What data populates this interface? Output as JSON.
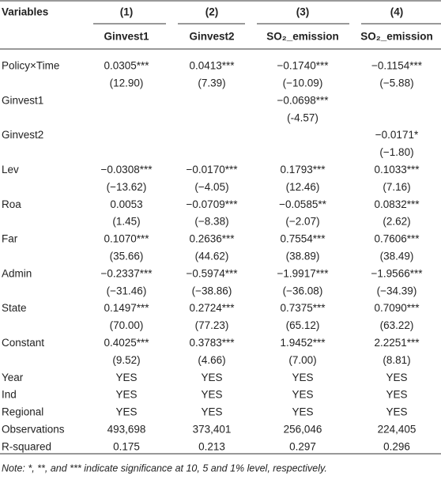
{
  "header": {
    "variables": "Variables",
    "columns": [
      "(1)",
      "(2)",
      "(3)",
      "(4)"
    ],
    "dependents": [
      "Ginvest1",
      "Ginvest2",
      "SO₂_emission",
      "SO₂_emission"
    ]
  },
  "rows": [
    {
      "label": "Policy×Time",
      "coef": [
        "0.0305***",
        "0.0413***",
        "−0.1740***",
        "−0.1154***"
      ],
      "t": [
        "(12.90)",
        "(7.39)",
        "(−10.09)",
        "(−5.88)"
      ]
    },
    {
      "label": "Ginvest1",
      "coef": [
        null,
        null,
        "−0.0698***",
        null
      ],
      "t": [
        null,
        null,
        "(-4.57)",
        null
      ]
    },
    {
      "label": "Ginvest2",
      "coef": [
        null,
        null,
        null,
        "−0.0171*"
      ],
      "t": [
        null,
        null,
        null,
        "(−1.80)"
      ]
    },
    {
      "label": "Lev",
      "coef": [
        "−0.0308***",
        "−0.0170***",
        "0.1793***",
        "0.1033***"
      ],
      "t": [
        "(−13.62)",
        "(−4.05)",
        "(12.46)",
        "(7.16)"
      ]
    },
    {
      "label": "Roa",
      "coef": [
        "0.0053",
        "−0.0709***",
        "−0.0585**",
        "0.0832***"
      ],
      "t": [
        "(1.45)",
        "(−8.38)",
        "(−2.07)",
        "(2.62)"
      ]
    },
    {
      "label": "Far",
      "coef": [
        "0.1070***",
        "0.2636***",
        "0.7554***",
        "0.7606***"
      ],
      "t": [
        "(35.66)",
        "(44.62)",
        "(38.89)",
        "(38.49)"
      ]
    },
    {
      "label": "Admin",
      "coef": [
        "−0.2337***",
        "−0.5974***",
        "−1.9917***",
        "−1.9566***"
      ],
      "t": [
        "(−31.46)",
        "(−38.86)",
        "(−36.08)",
        "(−34.39)"
      ]
    },
    {
      "label": "State",
      "coef": [
        "0.1497***",
        "0.2724***",
        "0.7375***",
        "0.7090***"
      ],
      "t": [
        "(70.00)",
        "(77.23)",
        "(65.12)",
        "(63.22)"
      ]
    },
    {
      "label": "Constant",
      "coef": [
        "0.4025***",
        "0.3783***",
        "1.9452***",
        "2.2251***"
      ],
      "t": [
        "(9.52)",
        "(4.66)",
        "(7.00)",
        "(8.81)"
      ]
    },
    {
      "label": "Year",
      "coef": [
        "YES",
        "YES",
        "YES",
        "YES"
      ]
    },
    {
      "label": "Ind",
      "coef": [
        "YES",
        "YES",
        "YES",
        "YES"
      ]
    },
    {
      "label": "Regional",
      "coef": [
        "YES",
        "YES",
        "YES",
        "YES"
      ]
    },
    {
      "label": "Observations",
      "coef": [
        "493,698",
        "373,401",
        "256,046",
        "224,405"
      ]
    },
    {
      "label": "R-squared",
      "coef": [
        "0.175",
        "0.213",
        "0.297",
        "0.296"
      ]
    }
  ],
  "note": "Note: *, **, and *** indicate significance at 10, 5 and 1% level, respectively."
}
